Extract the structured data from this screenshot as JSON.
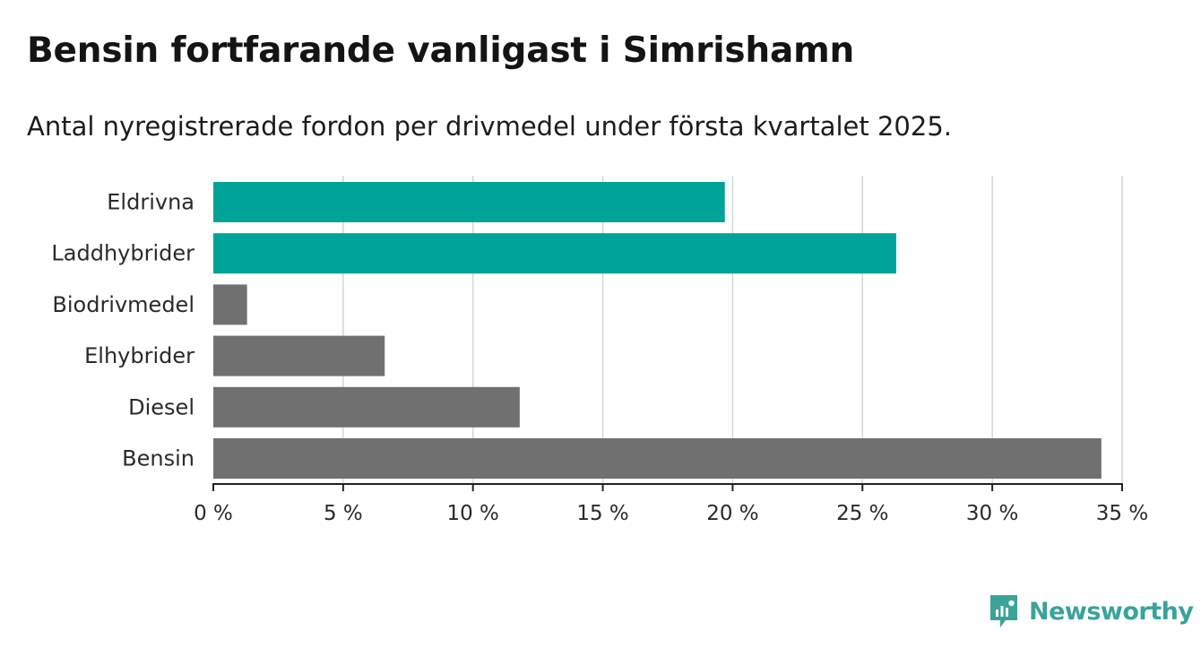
{
  "header": {
    "title": "Bensin fortfarande vanligast i Simrishamn",
    "subtitle": "Antal nyregistrerade fordon per drivmedel under första kvartalet 2025."
  },
  "brand": {
    "name": "Newsworthy",
    "icon": "newsworthy-logo-icon",
    "color": "#3aa39a"
  },
  "chart_data": {
    "type": "bar",
    "orientation": "horizontal",
    "categories": [
      "Eldrivna",
      "Laddhybrider",
      "Biodrivmedel",
      "Elhybrider",
      "Diesel",
      "Bensin"
    ],
    "values": [
      19.7,
      26.3,
      1.3,
      6.6,
      11.8,
      34.2
    ],
    "colors": [
      "#00a398",
      "#00a398",
      "#707070",
      "#707070",
      "#707070",
      "#707070"
    ],
    "xlim": [
      0,
      35
    ],
    "xticks": [
      0,
      5,
      10,
      15,
      20,
      25,
      30,
      35
    ],
    "xtick_labels": [
      "0 %",
      "5 %",
      "10 %",
      "15 %",
      "20 %",
      "25 %",
      "30 %",
      "35 %"
    ],
    "grid": true,
    "legend": "none"
  }
}
